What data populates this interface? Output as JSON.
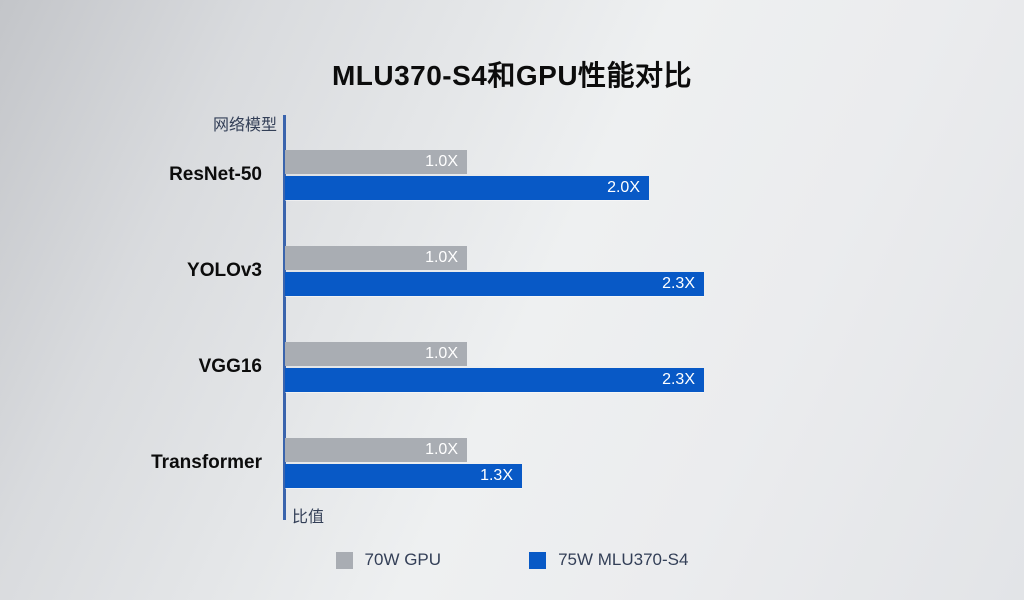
{
  "chart_data": {
    "type": "bar",
    "orientation": "horizontal",
    "title": "MLU370-S4和GPU性能对比",
    "xlabel": "比值",
    "ylabel": "网络模型",
    "categories": [
      "ResNet-50",
      "YOLOv3",
      "VGG16",
      "Transformer"
    ],
    "series": [
      {
        "name": "70W GPU",
        "color": "#a9adb3",
        "values": [
          1.0,
          1.0,
          1.0,
          1.0
        ],
        "labels": [
          "1.0X",
          "1.0X",
          "1.0X",
          "1.0X"
        ]
      },
      {
        "name": "75W MLU370-S4",
        "color": "#0859c6",
        "values": [
          2.0,
          2.3,
          2.3,
          1.3
        ],
        "labels": [
          "2.0X",
          "2.3X",
          "2.3X",
          "1.3X"
        ]
      }
    ],
    "xlim": [
      0,
      2.5
    ],
    "grid": false,
    "legend_position": "bottom",
    "value_label_color": "#ffffff",
    "axis_color": "#3a64ad",
    "text_color": "#333f57"
  }
}
